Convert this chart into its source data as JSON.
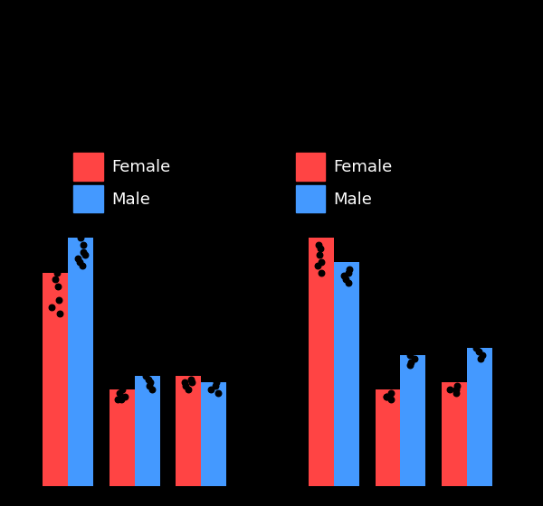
{
  "background_color": "#000000",
  "bar_color_red": "#FF4444",
  "bar_color_blue": "#4499FF",
  "dot_color": "#000000",
  "legend_labels": [
    "Female",
    "Male"
  ],
  "legend_colors": [
    "#FF4444",
    "#4499FF"
  ],
  "figsize": [
    6.0,
    5.6
  ],
  "dpi": 100,
  "pair_centers": [
    1.0,
    2.0,
    3.0,
    5.0,
    6.0,
    7.0
  ],
  "bar_width": 0.38,
  "red_heights": [
    0.62,
    0.28,
    0.32,
    0.72,
    0.28,
    0.3
  ],
  "blue_heights": [
    0.72,
    0.32,
    0.3,
    0.65,
    0.38,
    0.4
  ],
  "red_dots": [
    [
      0.58,
      0.6,
      0.54,
      0.62,
      0.52,
      0.5
    ],
    [
      0.26,
      0.25,
      0.27,
      0.28,
      0.25
    ],
    [
      0.3,
      0.31,
      0.29,
      0.28,
      0.3
    ],
    [
      0.67,
      0.69,
      0.65,
      0.7,
      0.64,
      0.62
    ],
    [
      0.26,
      0.27,
      0.25,
      0.26
    ],
    [
      0.28,
      0.29,
      0.27,
      0.28
    ]
  ],
  "blue_dots": [
    [
      0.68,
      0.7,
      0.66,
      0.72,
      0.65,
      0.67,
      0.64
    ],
    [
      0.3,
      0.31,
      0.29,
      0.32,
      0.28
    ],
    [
      0.28,
      0.29,
      0.3,
      0.27
    ],
    [
      0.61,
      0.62,
      0.6,
      0.63,
      0.59
    ],
    [
      0.36,
      0.37,
      0.35,
      0.38
    ],
    [
      0.38,
      0.39,
      0.37,
      0.4
    ]
  ],
  "xlim": [
    0.3,
    7.9
  ],
  "ylim": [
    0.0,
    1.0
  ]
}
